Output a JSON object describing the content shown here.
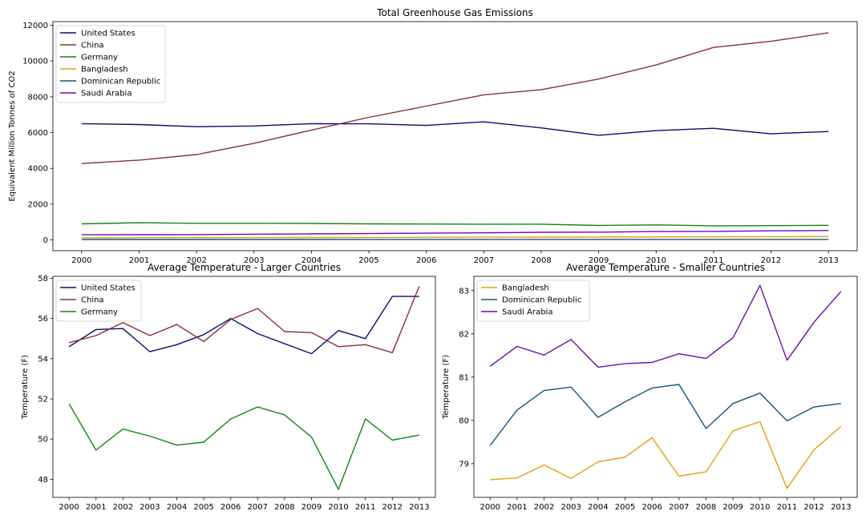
{
  "chart_data": [
    {
      "type": "line",
      "title": "Total Greenhouse Gas Emissions",
      "xlabel": "",
      "ylabel": "Equivalent Million Tonnes of CO2",
      "x": [
        2000,
        2001,
        2002,
        2003,
        2004,
        2005,
        2006,
        2007,
        2008,
        2009,
        2010,
        2011,
        2012,
        2013
      ],
      "xlim": [
        1999.5,
        2013.5
      ],
      "ylim": [
        -600,
        12200
      ],
      "yticks": [
        0,
        2000,
        4000,
        6000,
        8000,
        10000,
        12000
      ],
      "legend_position": "upper left",
      "series": [
        {
          "name": "United States",
          "color": "#0b0b6e",
          "values": [
            6500,
            6450,
            6330,
            6370,
            6500,
            6490,
            6400,
            6600,
            6260,
            5850,
            6110,
            6240,
            5930,
            6060
          ]
        },
        {
          "name": "China",
          "color": "#8b2e3e",
          "values": [
            4270,
            4460,
            4770,
            5400,
            6140,
            6850,
            7480,
            8110,
            8400,
            8990,
            9780,
            10760,
            11100,
            11580
          ]
        },
        {
          "name": "Germany",
          "color": "#118811",
          "values": [
            900,
            960,
            930,
            930,
            920,
            900,
            890,
            880,
            880,
            810,
            840,
            790,
            800,
            820
          ]
        },
        {
          "name": "Bangladesh",
          "color": "#e0a010",
          "values": [
            120,
            125,
            130,
            135,
            140,
            145,
            150,
            155,
            160,
            165,
            170,
            175,
            180,
            190
          ]
        },
        {
          "name": "Dominican Republic",
          "color": "#145580",
          "values": [
            25,
            26,
            27,
            28,
            28,
            29,
            29,
            30,
            30,
            30,
            31,
            31,
            32,
            32
          ]
        },
        {
          "name": "Saudi Arabia",
          "color": "#6a0dad",
          "values": [
            290,
            295,
            300,
            320,
            340,
            360,
            380,
            400,
            430,
            440,
            470,
            480,
            510,
            530
          ]
        }
      ]
    },
    {
      "type": "line",
      "title": "Average Temperature - Larger Countries",
      "xlabel": "",
      "ylabel": "Temperature (F)",
      "x": [
        2000,
        2001,
        2002,
        2003,
        2004,
        2005,
        2006,
        2007,
        2008,
        2009,
        2010,
        2011,
        2012,
        2013
      ],
      "xlim": [
        1999.4,
        2013.6
      ],
      "ylim": [
        47.1,
        58.1
      ],
      "yticks": [
        48,
        50,
        52,
        54,
        56,
        58
      ],
      "legend_position": "upper left",
      "series": [
        {
          "name": "United States",
          "color": "#0b0b6e",
          "values": [
            54.6,
            55.45,
            55.5,
            54.35,
            54.7,
            55.2,
            56.0,
            55.25,
            54.75,
            54.25,
            55.4,
            55.0,
            57.1,
            57.1
          ]
        },
        {
          "name": "China",
          "color": "#8b2e3e",
          "values": [
            54.8,
            55.15,
            55.8,
            55.15,
            55.7,
            54.85,
            55.95,
            56.5,
            55.35,
            55.3,
            54.6,
            54.7,
            54.3,
            57.6
          ]
        },
        {
          "name": "Germany",
          "color": "#118811",
          "values": [
            51.75,
            49.45,
            50.5,
            50.15,
            49.7,
            49.85,
            51.0,
            51.6,
            51.2,
            50.1,
            47.5,
            51.0,
            49.95,
            50.2
          ]
        }
      ]
    },
    {
      "type": "line",
      "title": "Average Temperature - Smaller Countries",
      "xlabel": "",
      "ylabel": "Temperature (F)",
      "x": [
        2000,
        2001,
        2002,
        2003,
        2004,
        2005,
        2006,
        2007,
        2008,
        2009,
        2010,
        2011,
        2012,
        2013
      ],
      "xlim": [
        1999.4,
        2013.6
      ],
      "ylim": [
        78.22,
        83.33
      ],
      "yticks": [
        79,
        80,
        81,
        82,
        83
      ],
      "legend_position": "upper left",
      "series": [
        {
          "name": "Bangladesh",
          "color": "#e0a010",
          "values": [
            78.63,
            78.67,
            78.97,
            78.66,
            79.04,
            79.15,
            79.6,
            78.71,
            78.81,
            79.76,
            79.97,
            78.43,
            79.32,
            79.86
          ]
        },
        {
          "name": "Dominican Republic",
          "color": "#145580",
          "values": [
            79.42,
            80.24,
            80.69,
            80.77,
            80.07,
            80.43,
            80.75,
            80.83,
            79.81,
            80.39,
            80.63,
            79.99,
            80.31,
            80.39
          ]
        },
        {
          "name": "Saudi Arabia",
          "color": "#6a0dad",
          "values": [
            81.25,
            81.71,
            81.51,
            81.87,
            81.23,
            81.31,
            81.34,
            81.54,
            81.43,
            81.91,
            83.12,
            81.39,
            82.27,
            82.98
          ]
        }
      ]
    }
  ]
}
